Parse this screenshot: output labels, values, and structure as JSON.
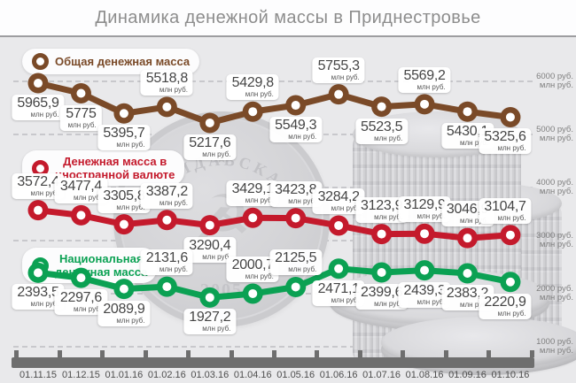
{
  "title": "Динамика денежной массы в Приднестровье",
  "chart_data": {
    "type": "line",
    "x": [
      "01.11.15",
      "01.12.15",
      "01.01.16",
      "01.02.16",
      "01.03.16",
      "01.04.16",
      "01.05.16",
      "01.06.16",
      "01.07.16",
      "01.08.16",
      "01.09.16",
      "01.10.16"
    ],
    "series": [
      {
        "name": "Общая денежная масса",
        "legend_lines": [
          "Общая денежная масса"
        ],
        "color": "#7a4a28",
        "values": [
          5965.9,
          5775,
          5395.7,
          5518.8,
          5217.6,
          5429.8,
          5549.3,
          5755.3,
          5523.5,
          5569.2,
          5430.1,
          5325.6
        ],
        "labels": [
          "5965,9",
          "5775",
          "5395,7",
          "5518,8",
          "5217,6",
          "5429,8",
          "5549,3",
          "5755,3",
          "5523,5",
          "5569,2",
          "5430,1",
          "5325,6"
        ],
        "label_pos": [
          "below",
          "below",
          "below",
          "above",
          "below",
          "above",
          "below",
          "above",
          "below",
          "above",
          "below",
          "below"
        ]
      },
      {
        "name": "Денежная масса в иностранной валюте",
        "legend_lines": [
          "Денежная масса в",
          "иностранной валюте"
        ],
        "color": "#c41a2c",
        "values": [
          3572.4,
          3477.4,
          3305.8,
          3387.2,
          3290.4,
          3429.1,
          3423.8,
          3284.2,
          3123.9,
          3129.9,
          3046.9,
          3104.7
        ],
        "labels": [
          "3572,4",
          "3477,4",
          "3305,8",
          "3387,2",
          "3290,4",
          "3429,1",
          "3423,8",
          "3284,2",
          "3123,9",
          "3129,9",
          "3046,9",
          "3104,7"
        ],
        "label_pos": [
          "above",
          "above",
          "above",
          "above",
          "below",
          "above",
          "above",
          "above",
          "above",
          "above",
          "above",
          "above"
        ]
      },
      {
        "name": "Национальная денежная масса",
        "legend_lines": [
          "Национальная",
          "денежная масса"
        ],
        "color": "#0ba153",
        "values": [
          2393.5,
          2297.6,
          2089.9,
          2131.6,
          1927.2,
          2000.7,
          2125.5,
          2471.1,
          2399.6,
          2439.3,
          2383.2,
          2220.9
        ],
        "labels": [
          "2393,5",
          "2297,6",
          "2089,9",
          "2131,6",
          "1927,2",
          "2000,7",
          "2125,5",
          "2471,1",
          "2399,6",
          "2439,3",
          "2383,2",
          "2220,9"
        ],
        "label_pos": [
          "below",
          "below",
          "below",
          "above",
          "below",
          "above",
          "above",
          "below",
          "below",
          "below",
          "below",
          "below"
        ]
      }
    ],
    "value_unit": "млн руб.",
    "y_axis": {
      "values": [
        6000,
        5000,
        4000,
        3000,
        2000,
        1000
      ],
      "tick_suffix": "руб.",
      "unit_line": "млн руб."
    },
    "ylim": [
      1000,
      6000
    ],
    "grid": "horizontal-dashed",
    "legend_position": "inside-left-stacked"
  },
  "decor": {
    "coin_edge_text": "МОЛДАВСКАЯ",
    "coin_year": "2005",
    "emblem_glyph": "☭",
    "star_glyph": "★"
  },
  "colors": {
    "total": "#7a4a28",
    "foreign": "#c41a2c",
    "national": "#0ba153",
    "background": "#e9e9eb",
    "axis": "#6e6e6e",
    "title": "#8d8d8d"
  }
}
